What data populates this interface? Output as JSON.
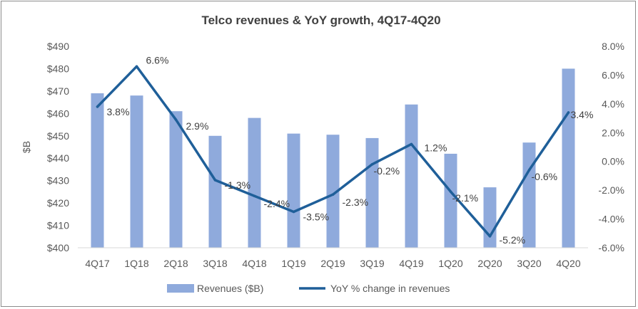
{
  "chart_data": {
    "type": "bar",
    "title": "Telco revenues & YoY growth, 4Q17-4Q20",
    "categories": [
      "4Q17",
      "1Q18",
      "2Q18",
      "3Q18",
      "4Q18",
      "1Q19",
      "2Q19",
      "3Q19",
      "4Q19",
      "1Q20",
      "2Q20",
      "3Q20",
      "4Q20"
    ],
    "series": [
      {
        "name": "Revenues ($B)",
        "type": "bar",
        "axis": "left",
        "color": "#8faadc",
        "values": [
          469,
          468,
          461,
          450,
          458,
          451,
          450.5,
          449,
          464,
          442,
          427,
          447,
          480
        ]
      },
      {
        "name": "YoY % change in revenues",
        "type": "line",
        "axis": "right",
        "color": "#1f5f99",
        "values": [
          3.8,
          6.6,
          2.9,
          -1.3,
          -2.4,
          -3.5,
          -2.3,
          -0.2,
          1.2,
          -2.1,
          -5.2,
          -0.6,
          3.4
        ],
        "labels": [
          "3.8%",
          "6.6%",
          "2.9%",
          "-1.3%",
          "-2.4%",
          "-3.5%",
          "-2.3%",
          "-0.2%",
          "1.2%",
          "-2.1%",
          "-5.2%",
          "-0.6%",
          "3.4%"
        ]
      }
    ],
    "ylabel": "$B",
    "ylim": [
      400,
      490
    ],
    "y_ticks": [
      "$490",
      "$480",
      "$470",
      "$460",
      "$450",
      "$440",
      "$430",
      "$420",
      "$410",
      "$400"
    ],
    "y2lim": [
      -6,
      8
    ],
    "y2_ticks": [
      "8.0%",
      "6.0%",
      "4.0%",
      "2.0%",
      "0.0%",
      "-2.0%",
      "-4.0%",
      "-6.0%"
    ],
    "grid": false,
    "legend": "bottom"
  }
}
